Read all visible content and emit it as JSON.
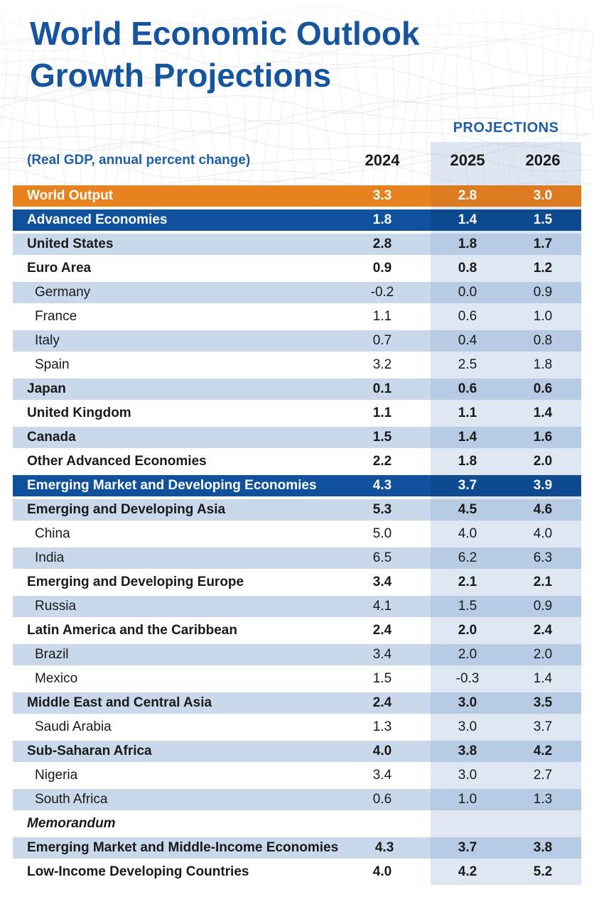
{
  "title": {
    "line1": "World Economic Outlook",
    "line2": "Growth Projections"
  },
  "colors": {
    "title-blue": "#16549E",
    "accent-blue": "#1E5FA8",
    "text-dark": "#1A1A1A",
    "orange": "#E8821E",
    "orange-band": "#DC7B20",
    "navy": "#0F519C",
    "navy-band": "#0D4A90",
    "light-row": "#C9D8EB",
    "light-row-band": "#B7CBE4",
    "white-row-band": "#DFE7F2",
    "band-overlay": "rgba(176,196,222,0.42)"
  },
  "chart_data": {
    "type": "table",
    "title": "World Economic Outlook Growth Projections",
    "subtitle": "(Real GDP, annual percent change)",
    "column_group_label": "PROJECTIONS",
    "columns": [
      "2024",
      "2025",
      "2026"
    ],
    "projection_columns": [
      "2025",
      "2026"
    ],
    "rows": [
      {
        "label": "World Output",
        "style": "orange",
        "indent": false,
        "bold": true,
        "italic": false,
        "values": [
          "3.3",
          "2.8",
          "3.0"
        ]
      },
      {
        "label": "Advanced Economies",
        "style": "navy",
        "indent": false,
        "bold": true,
        "italic": false,
        "values": [
          "1.8",
          "1.4",
          "1.5"
        ]
      },
      {
        "label": "United States",
        "style": "light",
        "indent": false,
        "bold": true,
        "italic": false,
        "values": [
          "2.8",
          "1.8",
          "1.7"
        ]
      },
      {
        "label": "Euro Area",
        "style": "white",
        "indent": false,
        "bold": true,
        "italic": false,
        "values": [
          "0.9",
          "0.8",
          "1.2"
        ]
      },
      {
        "label": "Germany",
        "style": "light",
        "indent": true,
        "bold": false,
        "italic": false,
        "values": [
          "-0.2",
          "0.0",
          "0.9"
        ]
      },
      {
        "label": "France",
        "style": "white",
        "indent": true,
        "bold": false,
        "italic": false,
        "values": [
          "1.1",
          "0.6",
          "1.0"
        ]
      },
      {
        "label": "Italy",
        "style": "light",
        "indent": true,
        "bold": false,
        "italic": false,
        "values": [
          "0.7",
          "0.4",
          "0.8"
        ]
      },
      {
        "label": "Spain",
        "style": "white",
        "indent": true,
        "bold": false,
        "italic": false,
        "values": [
          "3.2",
          "2.5",
          "1.8"
        ]
      },
      {
        "label": "Japan",
        "style": "light",
        "indent": false,
        "bold": true,
        "italic": false,
        "values": [
          "0.1",
          "0.6",
          "0.6"
        ]
      },
      {
        "label": "United Kingdom",
        "style": "white",
        "indent": false,
        "bold": true,
        "italic": false,
        "values": [
          "1.1",
          "1.1",
          "1.4"
        ]
      },
      {
        "label": "Canada",
        "style": "light",
        "indent": false,
        "bold": true,
        "italic": false,
        "values": [
          "1.5",
          "1.4",
          "1.6"
        ]
      },
      {
        "label": "Other Advanced Economies",
        "style": "white",
        "indent": false,
        "bold": true,
        "italic": false,
        "values": [
          "2.2",
          "1.8",
          "2.0"
        ]
      },
      {
        "label": "Emerging Market and Developing Economies",
        "style": "navy",
        "indent": false,
        "bold": true,
        "italic": false,
        "values": [
          "4.3",
          "3.7",
          "3.9"
        ]
      },
      {
        "label": "Emerging and Developing Asia",
        "style": "light",
        "indent": false,
        "bold": true,
        "italic": false,
        "values": [
          "5.3",
          "4.5",
          "4.6"
        ]
      },
      {
        "label": "China",
        "style": "white",
        "indent": true,
        "bold": false,
        "italic": false,
        "values": [
          "5.0",
          "4.0",
          "4.0"
        ]
      },
      {
        "label": "India",
        "style": "light",
        "indent": true,
        "bold": false,
        "italic": false,
        "values": [
          "6.5",
          "6.2",
          "6.3"
        ]
      },
      {
        "label": "Emerging and Developing Europe",
        "style": "white",
        "indent": false,
        "bold": true,
        "italic": false,
        "values": [
          "3.4",
          "2.1",
          "2.1"
        ]
      },
      {
        "label": "Russia",
        "style": "light",
        "indent": true,
        "bold": false,
        "italic": false,
        "values": [
          "4.1",
          "1.5",
          "0.9"
        ]
      },
      {
        "label": "Latin America and the Caribbean",
        "style": "white",
        "indent": false,
        "bold": true,
        "italic": false,
        "values": [
          "2.4",
          "2.0",
          "2.4"
        ]
      },
      {
        "label": "Brazil",
        "style": "light",
        "indent": true,
        "bold": false,
        "italic": false,
        "values": [
          "3.4",
          "2.0",
          "2.0"
        ]
      },
      {
        "label": "Mexico",
        "style": "white",
        "indent": true,
        "bold": false,
        "italic": false,
        "values": [
          "1.5",
          "-0.3",
          "1.4"
        ]
      },
      {
        "label": "Middle East and Central Asia",
        "style": "light",
        "indent": false,
        "bold": true,
        "italic": false,
        "values": [
          "2.4",
          "3.0",
          "3.5"
        ]
      },
      {
        "label": "Saudi Arabia",
        "style": "white",
        "indent": true,
        "bold": false,
        "italic": false,
        "values": [
          "1.3",
          "3.0",
          "3.7"
        ]
      },
      {
        "label": "Sub-Saharan Africa",
        "style": "light",
        "indent": false,
        "bold": true,
        "italic": false,
        "values": [
          "4.0",
          "3.8",
          "4.2"
        ]
      },
      {
        "label": "Nigeria",
        "style": "white",
        "indent": true,
        "bold": false,
        "italic": false,
        "values": [
          "3.4",
          "3.0",
          "2.7"
        ]
      },
      {
        "label": "South Africa",
        "style": "light",
        "indent": true,
        "bold": false,
        "italic": false,
        "values": [
          "0.6",
          "1.0",
          "1.3"
        ]
      },
      {
        "label": "Memorandum",
        "style": "white",
        "indent": false,
        "bold": true,
        "italic": true,
        "values": [
          "",
          "",
          ""
        ]
      },
      {
        "label": "Emerging Market and Middle-Income Economies",
        "style": "light",
        "indent": false,
        "bold": true,
        "italic": false,
        "values": [
          "4.3",
          "3.7",
          "3.8"
        ]
      },
      {
        "label": "Low-Income Developing Countries",
        "style": "white",
        "indent": false,
        "bold": true,
        "italic": false,
        "values": [
          "4.0",
          "4.2",
          "5.2"
        ]
      }
    ]
  }
}
